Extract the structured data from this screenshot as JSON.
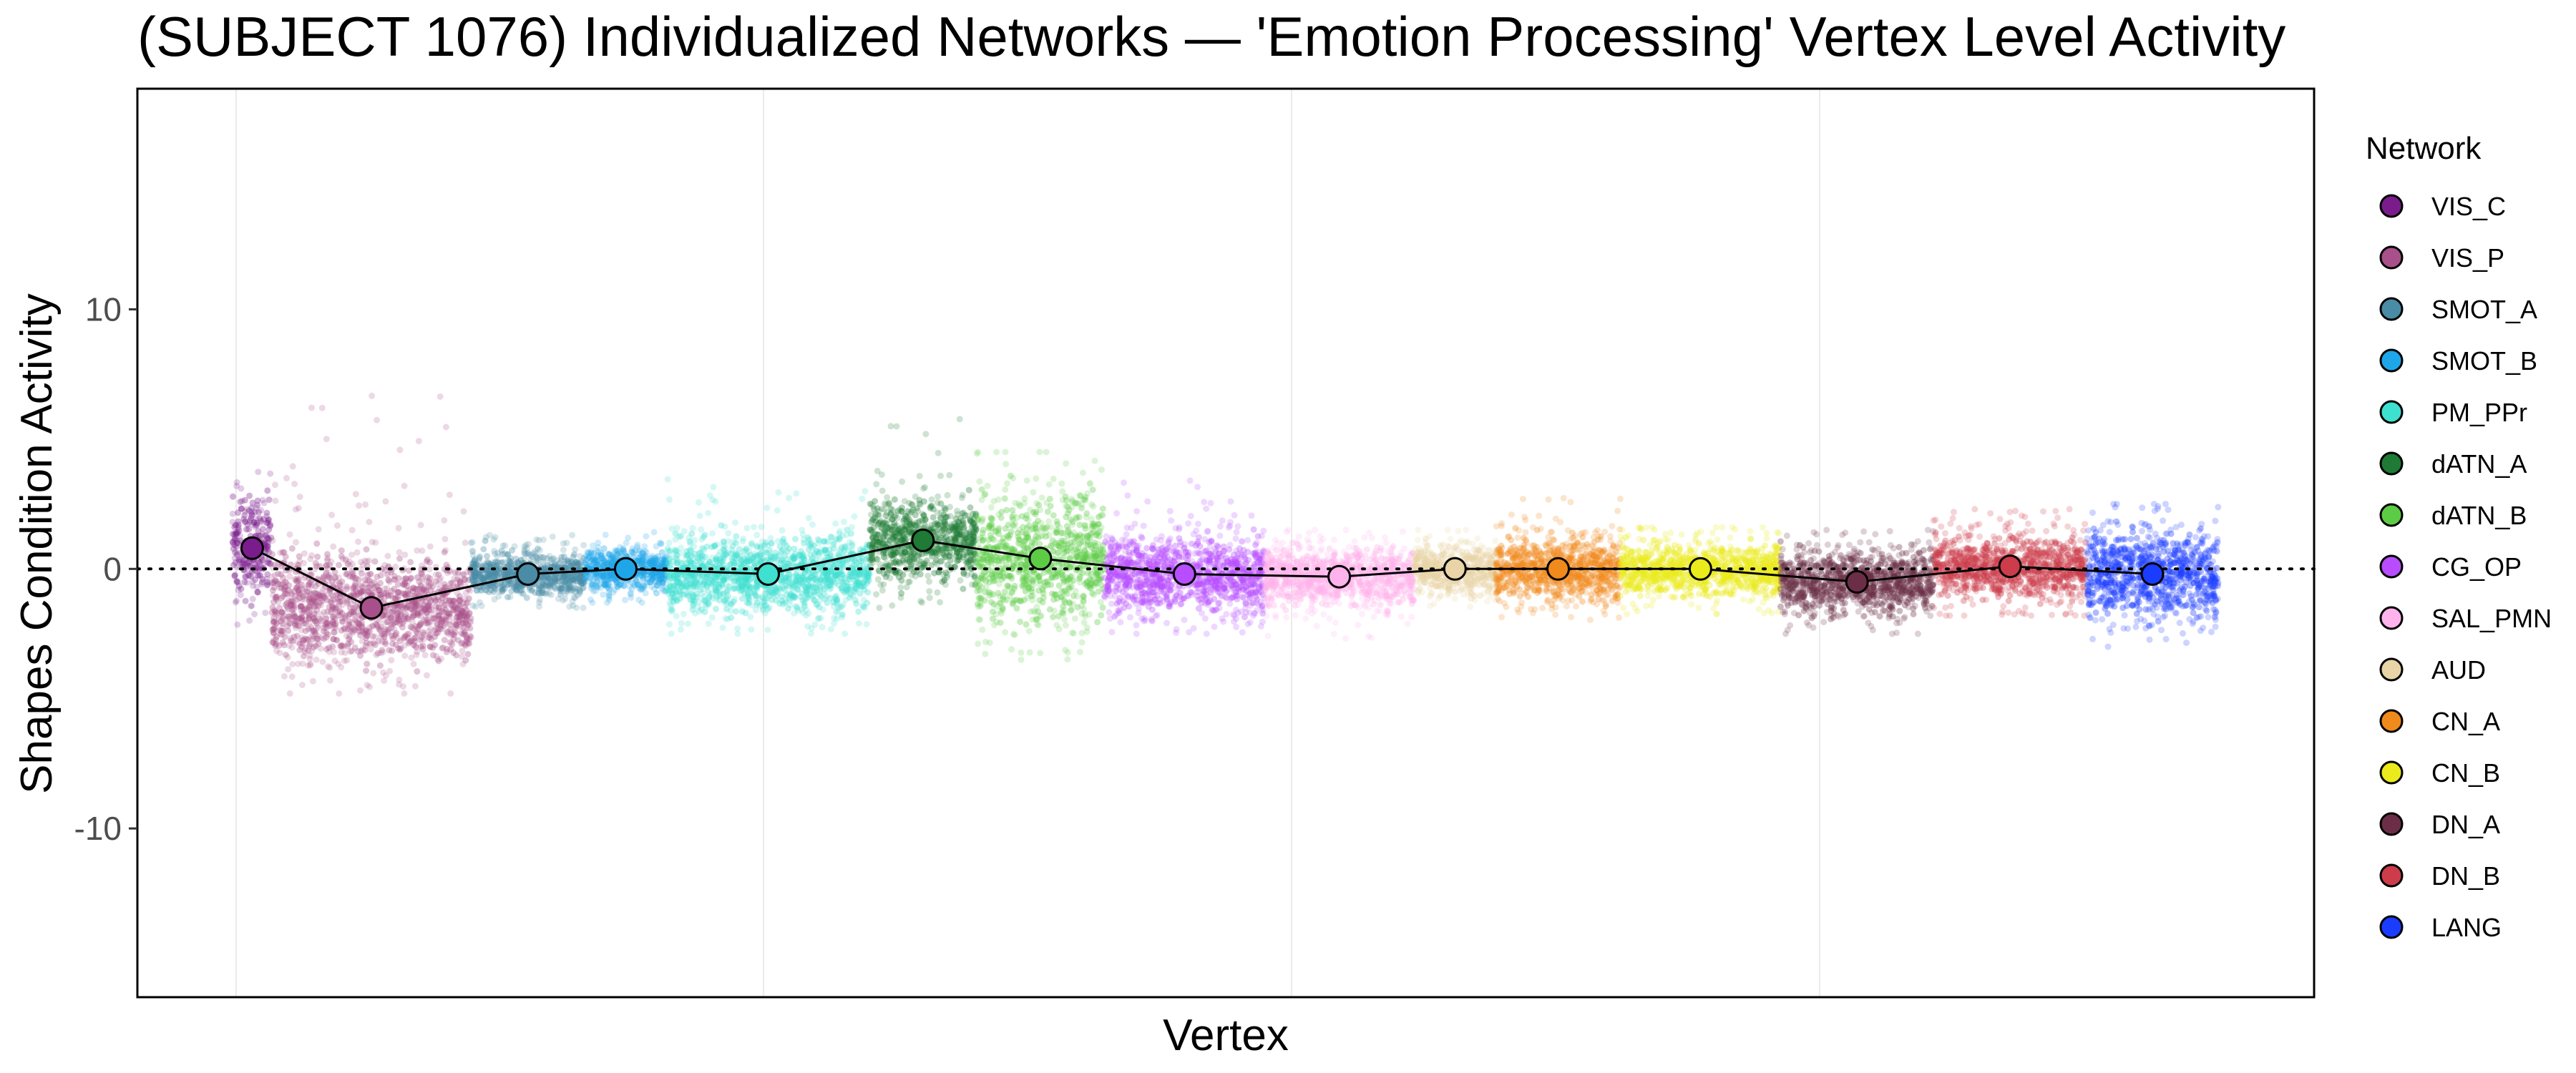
{
  "chart_data": {
    "type": "scatter",
    "title": "(SUBJECT 1076) Individualized Networks — 'Emotion Processing' Vertex Level Activity",
    "xlabel": "Vertex",
    "ylabel": "Shapes Condition Activity",
    "ylim": [
      -16.5,
      18.5
    ],
    "y_ticks": [
      10,
      0,
      -10
    ],
    "y_tick_labels": [
      "10",
      "0",
      "-10"
    ],
    "reference_line_y": 0,
    "grid": true,
    "legend": {
      "title": "Network",
      "position": "right"
    },
    "networks": [
      {
        "name": "VIS_C",
        "color": "#7a1c8c",
        "mean": 0.8,
        "spread": [
          -2.5,
          3.8
        ]
      },
      {
        "name": "VIS_P",
        "color": "#a8508a",
        "mean": -1.5,
        "spread": [
          -4.8,
          7.0
        ]
      },
      {
        "name": "SMOT_A",
        "color": "#4a8ba6",
        "mean": -0.2,
        "spread": [
          -1.5,
          1.3
        ]
      },
      {
        "name": "SMOT_B",
        "color": "#1fa6e8",
        "mean": 0.0,
        "spread": [
          -1.3,
          1.5
        ]
      },
      {
        "name": "PM_PPr",
        "color": "#3ee0d0",
        "mean": -0.2,
        "spread": [
          -2.5,
          3.5
        ]
      },
      {
        "name": "dATN_A",
        "color": "#1e7a34",
        "mean": 1.1,
        "spread": [
          -1.5,
          6.0
        ]
      },
      {
        "name": "dATN_B",
        "color": "#5ccc44",
        "mean": 0.4,
        "spread": [
          -3.5,
          4.5
        ]
      },
      {
        "name": "CG_OP",
        "color": "#b84dff",
        "mean": -0.2,
        "spread": [
          -2.5,
          3.5
        ]
      },
      {
        "name": "SAL_PMN",
        "color": "#ffb3ec",
        "mean": -0.3,
        "spread": [
          -2.8,
          1.5
        ]
      },
      {
        "name": "AUD",
        "color": "#e8d4a6",
        "mean": 0.0,
        "spread": [
          -1.6,
          1.5
        ]
      },
      {
        "name": "CN_A",
        "color": "#f08a1c",
        "mean": 0.0,
        "spread": [
          -2.0,
          2.8
        ]
      },
      {
        "name": "CN_B",
        "color": "#eaea1c",
        "mean": 0.0,
        "spread": [
          -1.8,
          1.6
        ]
      },
      {
        "name": "DN_A",
        "color": "#6b2e46",
        "mean": -0.5,
        "spread": [
          -2.5,
          1.5
        ]
      },
      {
        "name": "DN_B",
        "color": "#cc3c4a",
        "mean": 0.1,
        "spread": [
          -1.8,
          2.3
        ]
      },
      {
        "name": "LANG",
        "color": "#1a3cff",
        "mean": -0.2,
        "spread": [
          -3.0,
          2.5
        ]
      }
    ]
  }
}
